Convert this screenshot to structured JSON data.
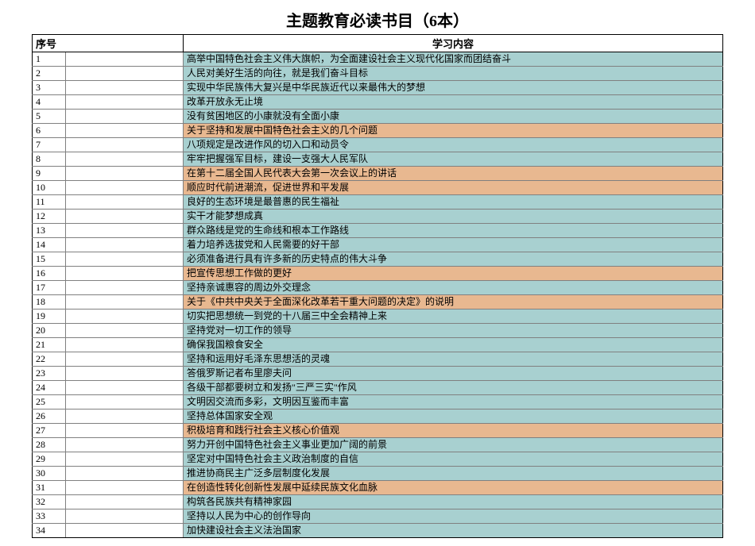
{
  "title": "主题教育必读书目（6本）",
  "columns": {
    "index": "序号",
    "content": "学习内容"
  },
  "colors": {
    "blue": "#a8d0d0",
    "orange": "#e8b890",
    "white": "#ffffff"
  },
  "rows": [
    {
      "index": "1",
      "content": "高举中国特色社会主义伟大旗帜，为全面建设社会主义现代化国家而团结奋斗",
      "color": "blue"
    },
    {
      "index": "2",
      "content": "人民对美好生活的向往，就是我们奋斗目标",
      "color": "blue"
    },
    {
      "index": "3",
      "content": "实现中华民族伟大复兴是中华民族近代以来最伟大的梦想",
      "color": "blue"
    },
    {
      "index": "4",
      "content": "改革开放永无止境",
      "color": "blue"
    },
    {
      "index": "5",
      "content": "没有贫困地区的小康就没有全面小康",
      "color": "blue"
    },
    {
      "index": "6",
      "content": "关于坚持和发展中国特色社会主义的几个问题",
      "color": "orange"
    },
    {
      "index": "7",
      "content": "八项规定是改进作风的切入口和动员令",
      "color": "blue"
    },
    {
      "index": "8",
      "content": "牢牢把握强军目标，建设一支强大人民军队",
      "color": "blue"
    },
    {
      "index": "9",
      "content": "在第十二届全国人民代表大会第一次会议上的讲话",
      "color": "orange"
    },
    {
      "index": "10",
      "content": "顺应时代前进潮流，促进世界和平发展",
      "color": "orange"
    },
    {
      "index": "11",
      "content": "良好的生态环境是最普惠的民生福祉",
      "color": "blue"
    },
    {
      "index": "12",
      "content": "实干才能梦想成真",
      "color": "blue"
    },
    {
      "index": "13",
      "content": "群众路线是党的生命线和根本工作路线",
      "color": "blue"
    },
    {
      "index": "14",
      "content": "着力培养选拔党和人民需要的好干部",
      "color": "blue"
    },
    {
      "index": "15",
      "content": "必须准备进行具有许多新的历史特点的伟大斗争",
      "color": "blue"
    },
    {
      "index": "16",
      "content": "把宣传思想工作做的更好",
      "color": "orange"
    },
    {
      "index": "17",
      "content": "坚持亲诚惠容的周边外交理念",
      "color": "blue"
    },
    {
      "index": "18",
      "content": "关于《中共中央关于全面深化改革若干重大问题的决定》的说明",
      "color": "orange"
    },
    {
      "index": "19",
      "content": "切实把思想统一到党的十八届三中全会精神上来",
      "color": "blue"
    },
    {
      "index": "20",
      "content": "坚持党对一切工作的领导",
      "color": "blue"
    },
    {
      "index": "21",
      "content": "确保我国粮食安全",
      "color": "blue"
    },
    {
      "index": "22",
      "content": "坚持和运用好毛泽东思想活的灵魂",
      "color": "blue"
    },
    {
      "index": "23",
      "content": "答俄罗斯记者布里廖夫问",
      "color": "blue"
    },
    {
      "index": "24",
      "content": "各级干部都要树立和发扬\"三严三实\"作风",
      "color": "blue"
    },
    {
      "index": "25",
      "content": "文明因交流而多彩，文明因互鉴而丰富",
      "color": "blue"
    },
    {
      "index": "26",
      "content": "坚持总体国家安全观",
      "color": "blue"
    },
    {
      "index": "27",
      "content": "积极培育和践行社会主义核心价值观",
      "color": "orange"
    },
    {
      "index": "28",
      "content": "努力开创中国特色社会主义事业更加广阔的前景",
      "color": "blue"
    },
    {
      "index": "29",
      "content": "坚定对中国特色社会主义政治制度的自信",
      "color": "blue"
    },
    {
      "index": "30",
      "content": "推进协商民主广泛多层制度化发展",
      "color": "blue"
    },
    {
      "index": "31",
      "content": "在创造性转化创新性发展中延续民族文化血脉",
      "color": "orange"
    },
    {
      "index": "32",
      "content": "构筑各民族共有精神家园",
      "color": "blue"
    },
    {
      "index": "33",
      "content": "坚持以人民为中心的创作导向",
      "color": "blue"
    },
    {
      "index": "34",
      "content": "加快建设社会主义法治国家",
      "color": "blue"
    }
  ]
}
